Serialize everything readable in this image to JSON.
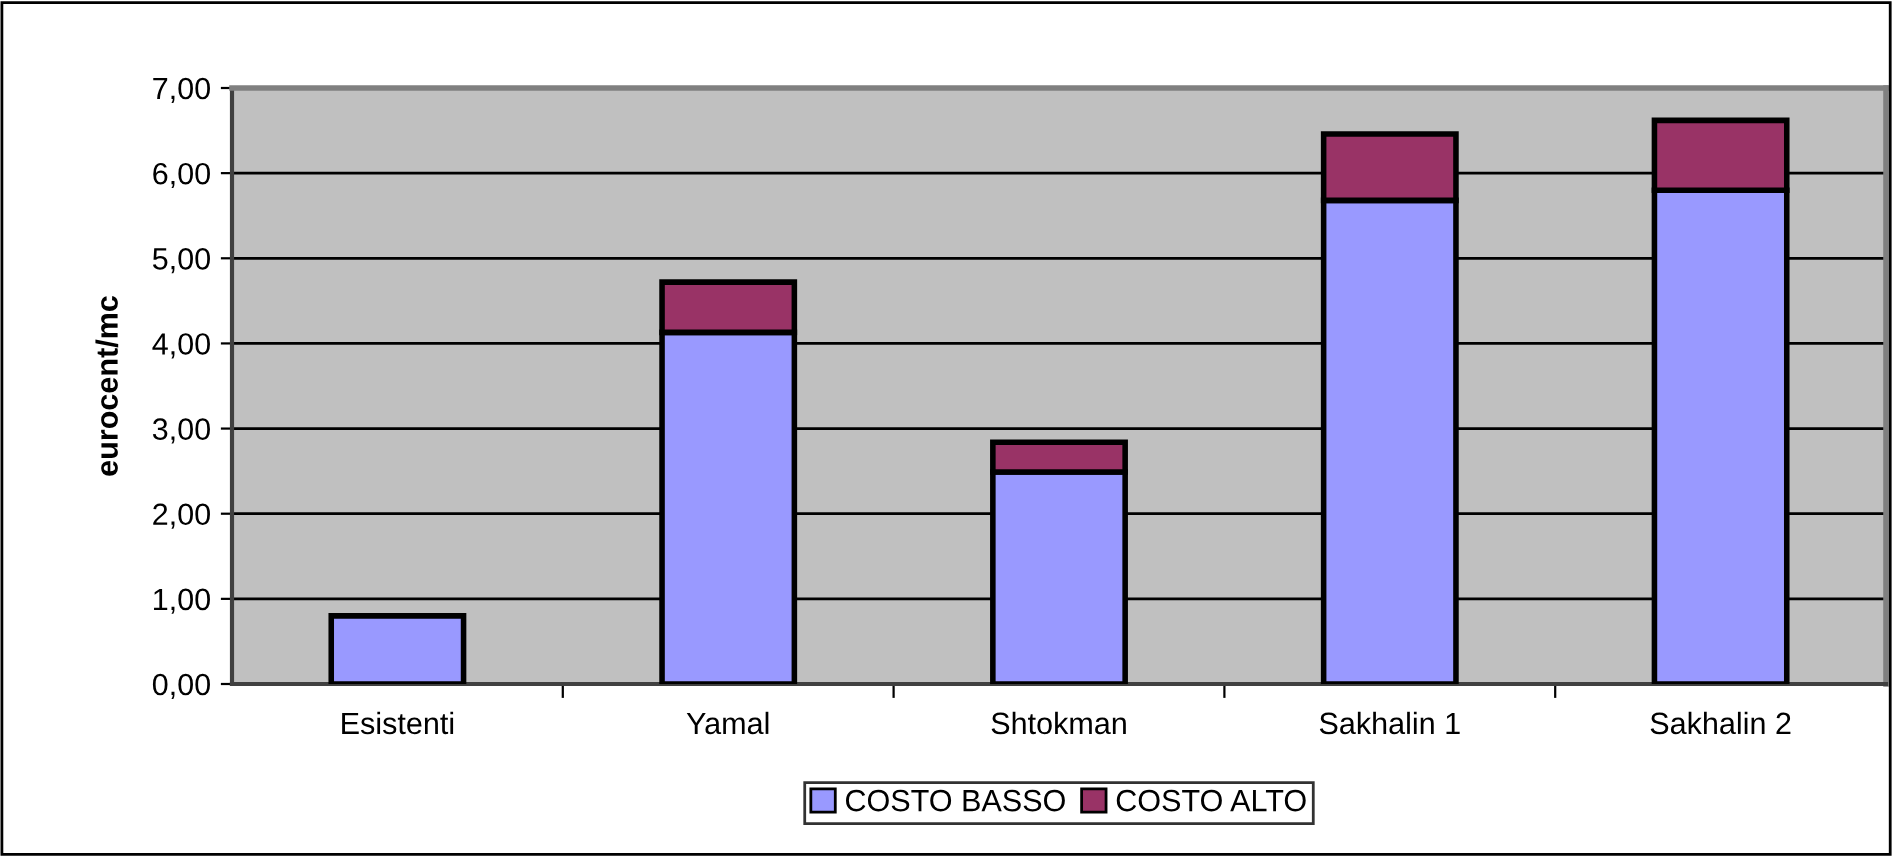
{
  "chart_data": {
    "type": "bar",
    "ylabel": "eurocent/mc",
    "categories": [
      "Esistenti",
      "Yamal",
      "Shtokman",
      "Sakhalin 1",
      "Sakhalin 2"
    ],
    "stacked": true,
    "series": [
      {
        "name": "COSTO BASSO",
        "color": "#9999ff",
        "values": [
          0.8,
          4.13,
          2.49,
          5.68,
          5.8
        ]
      },
      {
        "name": "COSTO ALTO",
        "color": "#993366",
        "values": [
          null,
          0.59,
          0.35,
          0.78,
          0.82
        ]
      }
    ],
    "ylim": [
      0,
      7
    ],
    "yticks": [
      {
        "value": 0,
        "label": "0,00"
      },
      {
        "value": 1,
        "label": "1,00"
      },
      {
        "value": 2,
        "label": "2,00"
      },
      {
        "value": 3,
        "label": "3,00"
      },
      {
        "value": 4,
        "label": "4,00"
      },
      {
        "value": 5,
        "label": "5,00"
      },
      {
        "value": 6,
        "label": "6,00"
      },
      {
        "value": 7,
        "label": "7,00"
      }
    ],
    "grid": "y",
    "legend": "bottom"
  }
}
